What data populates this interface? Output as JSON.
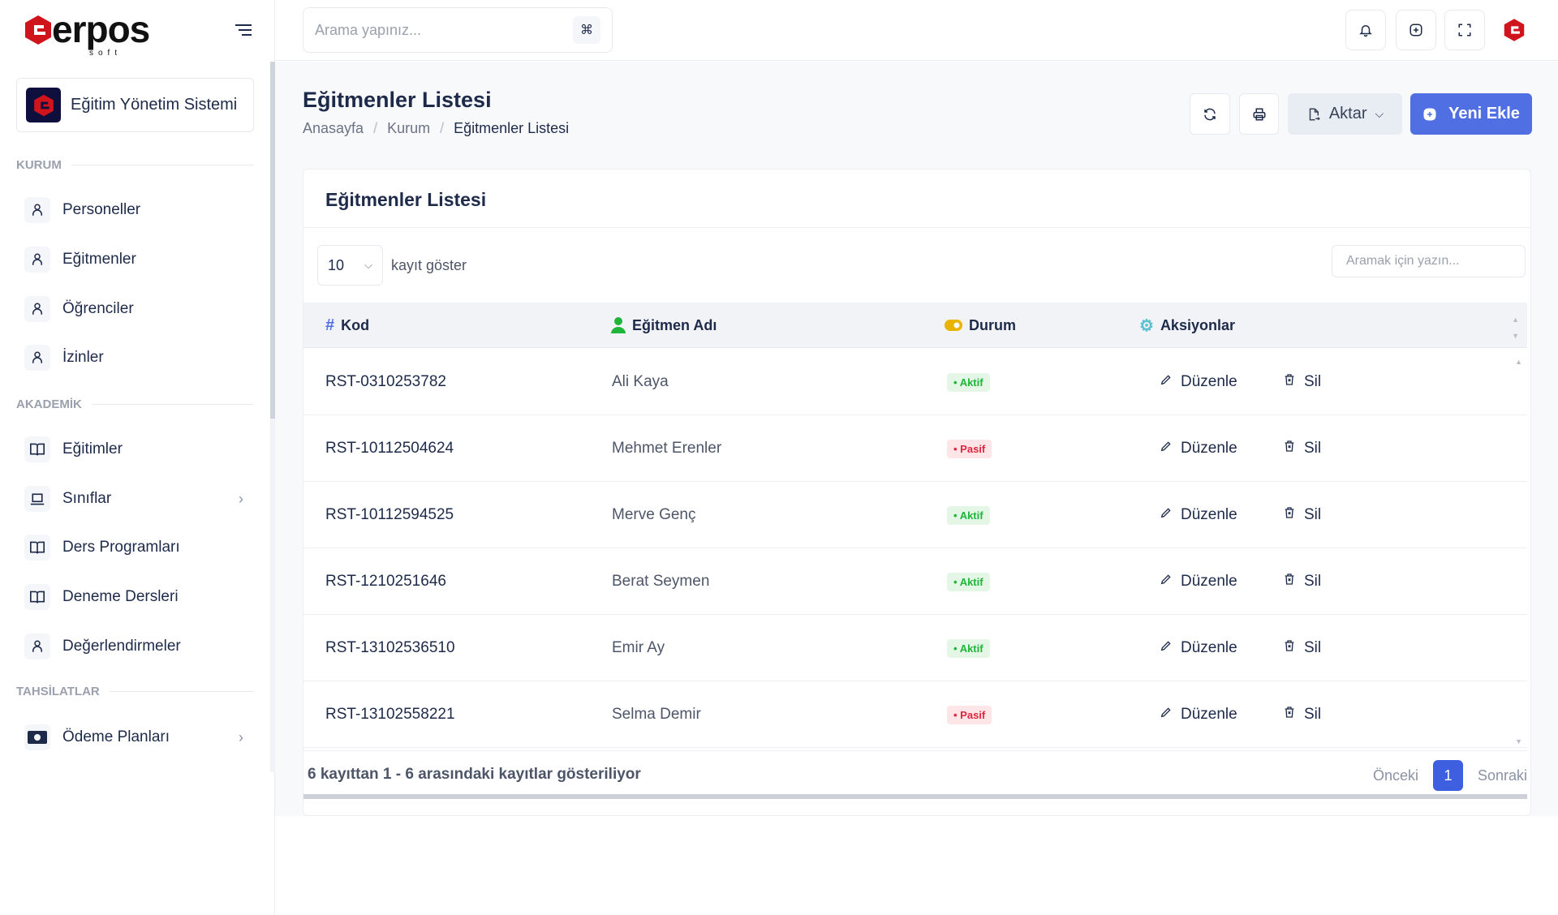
{
  "brand": {
    "name": "erpos",
    "sub": "soft"
  },
  "org": {
    "name": "Eğitim Yönetim Sistemi"
  },
  "sidebar": {
    "sections": [
      {
        "title": "KURUM"
      },
      {
        "title": "AKADEMİK"
      },
      {
        "title": "TAHSİLATLAR"
      }
    ],
    "items": [
      {
        "label": "Personeller",
        "icon": "user"
      },
      {
        "label": "Eğitmenler",
        "icon": "user"
      },
      {
        "label": "Öğrenciler",
        "icon": "user"
      },
      {
        "label": "İzinler",
        "icon": "user"
      },
      {
        "label": "Eğitimler",
        "icon": "book"
      },
      {
        "label": "Sınıflar",
        "icon": "laptop"
      },
      {
        "label": "Ders Programları",
        "icon": "book"
      },
      {
        "label": "Deneme Dersleri",
        "icon": "book"
      },
      {
        "label": "Değerlendirmeler",
        "icon": "user"
      },
      {
        "label": "Ödeme Planları",
        "icon": "money"
      }
    ]
  },
  "topbar": {
    "search_placeholder": "Arama yapınız...",
    "shortcut": "⌘"
  },
  "page": {
    "title": "Eğitmenler Listesi",
    "breadcrumb": [
      "Anasayfa",
      "Kurum",
      "Eğitmenler Listesi"
    ],
    "export_label": "Aktar",
    "new_label": "Yeni Ekle"
  },
  "card": {
    "title": "Eğitmenler Listesi",
    "page_length": "10",
    "length_label": "kayıt göster",
    "search_placeholder": "Aramak için yazın..."
  },
  "table": {
    "columns": [
      "Kod",
      "Eğitmen Adı",
      "Durum",
      "Aksiyonlar"
    ],
    "edit_label": "Düzenle",
    "delete_label": "Sil",
    "rows": [
      {
        "code": "RST-0310253782",
        "name": "Ali Kaya",
        "status": "Aktif",
        "active": true
      },
      {
        "code": "RST-10112504624",
        "name": "Mehmet Erenler",
        "status": "Pasif",
        "active": false
      },
      {
        "code": "RST-10112594525",
        "name": "Merve Genç",
        "status": "Aktif",
        "active": true
      },
      {
        "code": "RST-1210251646",
        "name": "Berat Seymen",
        "status": "Aktif",
        "active": true
      },
      {
        "code": "RST-13102536510",
        "name": "Emir Ay",
        "status": "Aktif",
        "active": true
      },
      {
        "code": "RST-13102558221",
        "name": "Selma Demir",
        "status": "Pasif",
        "active": false
      }
    ]
  },
  "footer": {
    "info": "6 kayıttan 1 - 6 arasındaki kayıtlar gösteriliyor",
    "prev": "Önceki",
    "page": "1",
    "next": "Sonraki"
  },
  "colors": {
    "accent": "#4f6fe3",
    "brand_red": "#d0141b",
    "active": "#1fb53a",
    "passive": "#e2243f"
  }
}
